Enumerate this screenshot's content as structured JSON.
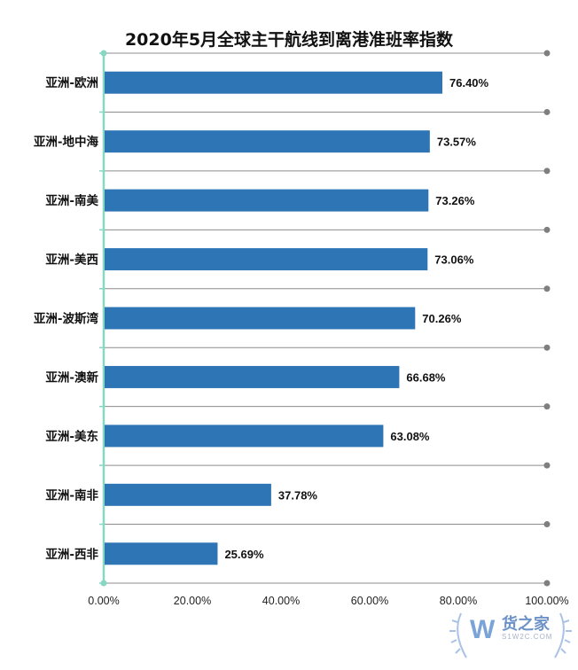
{
  "chart_data": {
    "type": "bar",
    "orientation": "horizontal",
    "title": "2020年5月全球主干航线到离港准班率指数",
    "categories": [
      "亚洲-欧洲",
      "亚洲-地中海",
      "亚洲-南美",
      "亚洲-美西",
      "亚洲-波斯湾",
      "亚洲-澳新",
      "亚洲-美东",
      "亚洲-南非",
      "亚洲-西非"
    ],
    "values": [
      76.4,
      73.57,
      73.26,
      73.06,
      70.26,
      66.68,
      63.08,
      37.78,
      25.69
    ],
    "value_labels": [
      "76.40%",
      "73.57%",
      "73.26%",
      "73.06%",
      "70.26%",
      "66.68%",
      "63.08%",
      "37.78%",
      "25.69%"
    ],
    "xlim": [
      0,
      100
    ],
    "x_ticks": [
      "0.00%",
      "20.00%",
      "40.00%",
      "60.00%",
      "80.00%",
      "100.00%"
    ],
    "bar_color": "#2e75b6",
    "axis_color": "#86d7c3",
    "grid": true,
    "legend": "none"
  },
  "watermark": {
    "text": "货之家",
    "sub_text": "S1W2C.COM"
  }
}
